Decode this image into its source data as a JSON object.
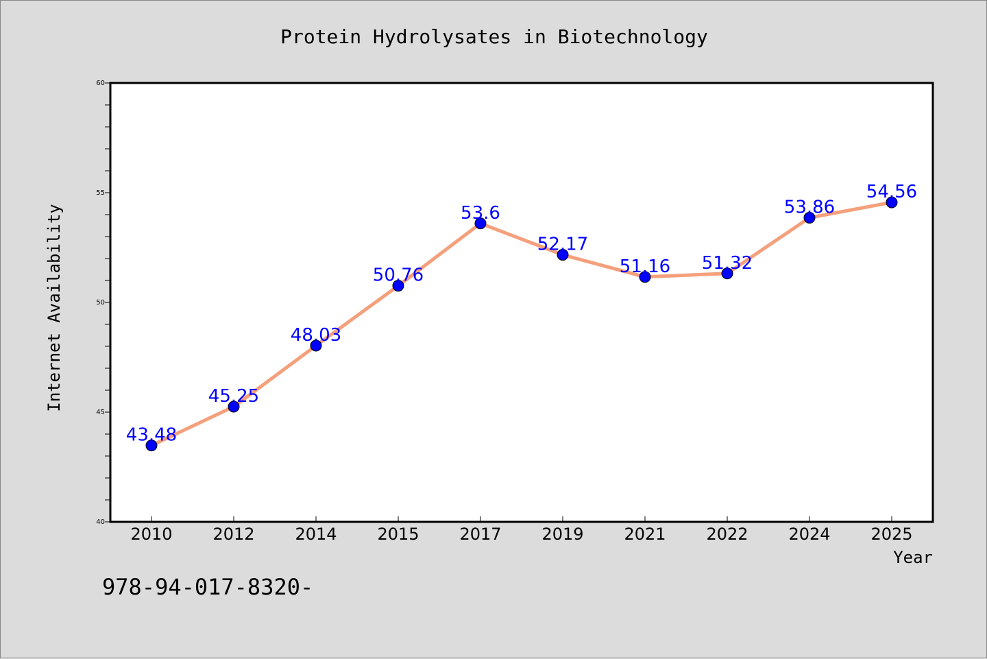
{
  "chart_data": {
    "type": "line",
    "title": "Protein Hydrolysates in Biotechnology",
    "xlabel": "Year",
    "ylabel": "Internet Availability",
    "categories": [
      "2010",
      "2012",
      "2014",
      "2015",
      "2017",
      "2019",
      "2021",
      "2022",
      "2024",
      "2025"
    ],
    "series": [
      {
        "values": [
          43.48,
          45.25,
          48.03,
          50.76,
          53.6,
          52.17,
          51.16,
          51.32,
          53.86,
          54.56
        ],
        "labels": [
          "43.48",
          "45.25",
          "48.03",
          "50.76",
          "53.6",
          "52.17",
          "51.16",
          "51.32",
          "53.86",
          "54.56"
        ]
      }
    ],
    "ylim": [
      40,
      60
    ],
    "yticks": [
      "40",
      "45",
      "50",
      "55",
      "60"
    ],
    "grid": false,
    "legend": "none",
    "colors": {
      "line": "#f4a07c",
      "marker": "#0000ff",
      "label": "#0000ff",
      "plot_background": "#ffffff",
      "page_background": "#dcdcdc"
    }
  },
  "footer_text": "978-94-017-8320-"
}
